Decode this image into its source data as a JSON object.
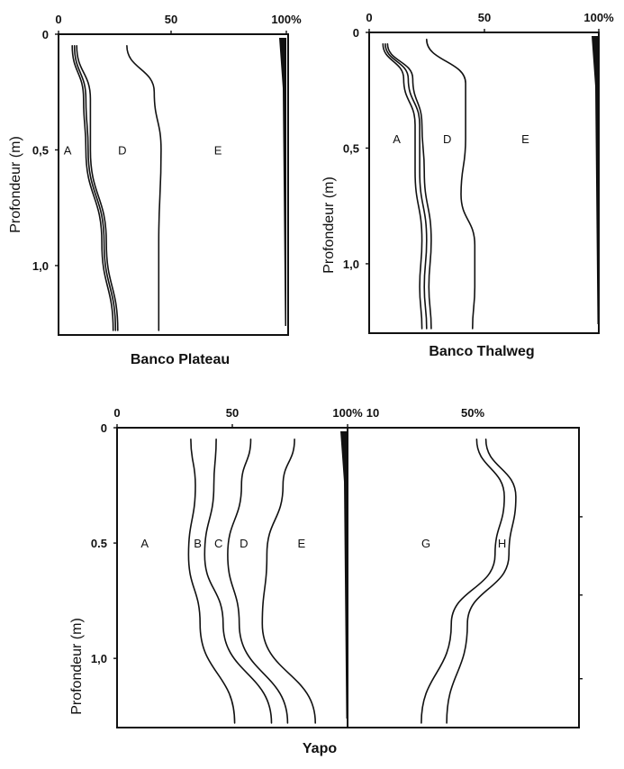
{
  "chart_data": [
    {
      "type": "area",
      "title": "Banco Plateau",
      "ylabel": "Profondeur (m)",
      "x_ticks": [
        "0",
        "50",
        "100%"
      ],
      "y_ticks": [
        "0",
        "0,5",
        "1,0"
      ],
      "xlim": [
        0,
        100
      ],
      "ylim": [
        0,
        1.3
      ],
      "zones": [
        {
          "label": "A",
          "x": 4,
          "y": 0.5
        },
        {
          "label": "D",
          "x": 28,
          "y": 0.5
        },
        {
          "label": "E",
          "x": 70,
          "y": 0.5
        }
      ],
      "series": [
        {
          "x": [
            6,
            11,
            12,
            19,
            24
          ],
          "y": [
            0.05,
            0.28,
            0.5,
            0.9,
            1.28
          ]
        },
        {
          "x": [
            7,
            12,
            13,
            20,
            25
          ],
          "y": [
            0.05,
            0.28,
            0.5,
            0.9,
            1.28
          ]
        },
        {
          "x": [
            8,
            14,
            14,
            21,
            26
          ],
          "y": [
            0.05,
            0.28,
            0.5,
            0.9,
            1.28
          ]
        },
        {
          "x": [
            30,
            42,
            45,
            44,
            44
          ],
          "y": [
            0.05,
            0.25,
            0.5,
            0.9,
            1.28
          ]
        }
      ]
    },
    {
      "type": "area",
      "title": "Banco Thalweg",
      "ylabel": "Profondeur (m)",
      "x_ticks": [
        "0",
        "50",
        "100%"
      ],
      "y_ticks": [
        "0",
        "0,5",
        "1,0"
      ],
      "xlim": [
        0,
        100
      ],
      "ylim": [
        0,
        1.3
      ],
      "zones": [
        {
          "label": "A",
          "x": 12,
          "y": 0.46
        },
        {
          "label": "D",
          "x": 34,
          "y": 0.46
        },
        {
          "label": "E",
          "x": 68,
          "y": 0.46
        }
      ],
      "series": [
        {
          "x": [
            6,
            15,
            20,
            20,
            23,
            22,
            23
          ],
          "y": [
            0.05,
            0.2,
            0.4,
            0.6,
            0.9,
            1.1,
            1.28
          ]
        },
        {
          "x": [
            7,
            17,
            22,
            22,
            25,
            24,
            25
          ],
          "y": [
            0.05,
            0.2,
            0.4,
            0.6,
            0.9,
            1.1,
            1.28
          ]
        },
        {
          "x": [
            8,
            19,
            23,
            24,
            27,
            26,
            27
          ],
          "y": [
            0.05,
            0.2,
            0.4,
            0.6,
            0.9,
            1.1,
            1.28
          ]
        },
        {
          "x": [
            25,
            42,
            42,
            40,
            46,
            46,
            45
          ],
          "y": [
            0.03,
            0.22,
            0.46,
            0.7,
            0.92,
            1.1,
            1.28
          ]
        }
      ]
    },
    {
      "type": "area",
      "title": "Yapo",
      "ylabel": "Profondeur (m)",
      "x_ticks": [
        "0",
        "50",
        "100%"
      ],
      "x_ticks_right": [
        "10",
        "50%"
      ],
      "y_ticks": [
        "0",
        "0.5",
        "1,0"
      ],
      "xlim": [
        0,
        100
      ],
      "ylim": [
        0,
        1.3
      ],
      "zones": [
        {
          "label": "A",
          "x": 12,
          "y": 0.5
        },
        {
          "label": "B",
          "x": 35,
          "y": 0.5
        },
        {
          "label": "C",
          "x": 44,
          "y": 0.5
        },
        {
          "label": "D",
          "x": 55,
          "y": 0.5
        },
        {
          "label": "E",
          "x": 80,
          "y": 0.5
        },
        {
          "label": "G",
          "x": 134,
          "y": 0.5
        },
        {
          "label": "H",
          "x": 167,
          "y": 0.5
        }
      ],
      "series": [
        {
          "x": [
            32,
            34,
            31,
            36,
            51
          ],
          "y": [
            0.05,
            0.25,
            0.55,
            0.85,
            1.28
          ]
        },
        {
          "x": [
            43,
            42,
            38,
            46,
            67
          ],
          "y": [
            0.05,
            0.25,
            0.55,
            0.85,
            1.28
          ]
        },
        {
          "x": [
            58,
            54,
            48,
            53,
            74
          ],
          "y": [
            0.05,
            0.25,
            0.55,
            0.85,
            1.28
          ]
        },
        {
          "x": [
            77,
            72,
            65,
            63,
            86
          ],
          "y": [
            0.05,
            0.25,
            0.55,
            0.85,
            1.28
          ]
        },
        {
          "x": [
            156,
            168,
            164,
            145,
            132
          ],
          "y": [
            0.05,
            0.3,
            0.55,
            0.85,
            1.28
          ]
        },
        {
          "x": [
            160,
            173,
            170,
            152,
            143
          ],
          "y": [
            0.05,
            0.3,
            0.55,
            0.85,
            1.28
          ]
        }
      ]
    }
  ]
}
